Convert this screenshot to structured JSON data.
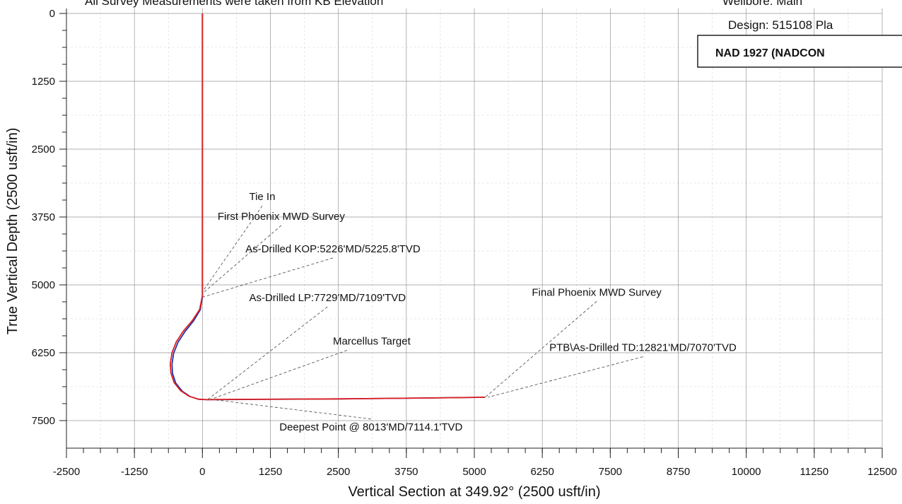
{
  "header": {
    "note": "All Survey Measurements were taken from KB Elevation",
    "wellbore": "Wellbore: Main",
    "design": "Design:  515108 Pla",
    "datum": "NAD 1927 (NADCON"
  },
  "chart_data": {
    "type": "line",
    "xlabel": "Vertical Section at 349.92° (2500 usft/in)",
    "ylabel": "True Vertical Depth (2500 usft/in)",
    "xlim": [
      -2500,
      12500
    ],
    "ylim": [
      0,
      7500
    ],
    "y_inverted": true,
    "x_ticks": [
      "-2500",
      "-1250",
      "0",
      "1250",
      "2500",
      "3750",
      "5000",
      "6250",
      "7500",
      "8750",
      "10000",
      "11250",
      "12500"
    ],
    "y_ticks": [
      "0",
      "1250",
      "2500",
      "3750",
      "5000",
      "6250",
      "7500"
    ],
    "grid": true,
    "colors": {
      "plan": "#e02020",
      "actual": "#2233aa"
    },
    "series": [
      {
        "color": "#e02020",
        "x": [
          0,
          0,
          0,
          -50,
          -180,
          -350,
          -480,
          -560,
          -590,
          -580,
          -520,
          -400,
          -250,
          -80,
          80,
          500,
          2500,
          4000,
          5200
        ],
        "y": [
          0,
          2500,
          5200,
          5450,
          5650,
          5850,
          6050,
          6250,
          6450,
          6620,
          6800,
          6950,
          7050,
          7105,
          7114,
          7110,
          7100,
          7085,
          7070
        ]
      },
      {
        "color": "#2233aa",
        "x": [
          0,
          0,
          0,
          -40,
          -160,
          -320,
          -450,
          -530,
          -560,
          -550,
          -490,
          -370,
          -220,
          -60,
          100,
          500,
          2500,
          4000,
          5200
        ],
        "y": [
          0,
          2500,
          5226,
          5460,
          5660,
          5860,
          6060,
          6260,
          6460,
          6630,
          6810,
          6960,
          7060,
          7110,
          7114,
          7112,
          7100,
          7085,
          7070
        ]
      }
    ],
    "annotations": [
      {
        "text": "Tie In",
        "at": [
          0,
          5130
        ],
        "label_at": [
          1100,
          3440
        ],
        "anchor": "middle"
      },
      {
        "text": "First Phoenix MWD Survey",
        "at": [
          0,
          5160
        ],
        "label_at": [
          1450,
          3800
        ],
        "anchor": "middle"
      },
      {
        "text": "As-Drilled KOP:5226'MD/5225.8'TVD",
        "at": [
          0,
          5226
        ],
        "label_at": [
          2400,
          4400
        ],
        "anchor": "middle"
      },
      {
        "text": "As-Drilled LP:7729'MD/7109'TVD",
        "at": [
          100,
          7109
        ],
        "label_at": [
          2300,
          5300
        ],
        "anchor": "middle"
      },
      {
        "text": "Marcellus Target",
        "at": [
          150,
          7110
        ],
        "label_at": [
          2400,
          6100
        ],
        "anchor": "start"
      },
      {
        "text": "Deepest Point @ 8013'MD/7114.1'TVD",
        "at": [
          200,
          7114
        ],
        "label_at": [
          3100,
          7680
        ],
        "anchor": "middle"
      },
      {
        "text": "Final Phoenix MWD Survey",
        "at": [
          5200,
          7070
        ],
        "label_at": [
          7250,
          5200
        ],
        "anchor": "middle"
      },
      {
        "text": "PTB\\As-Drilled TD:12821'MD/7070'TVD",
        "at": [
          5250,
          7070
        ],
        "label_at": [
          8100,
          6220
        ],
        "anchor": "middle"
      }
    ]
  }
}
